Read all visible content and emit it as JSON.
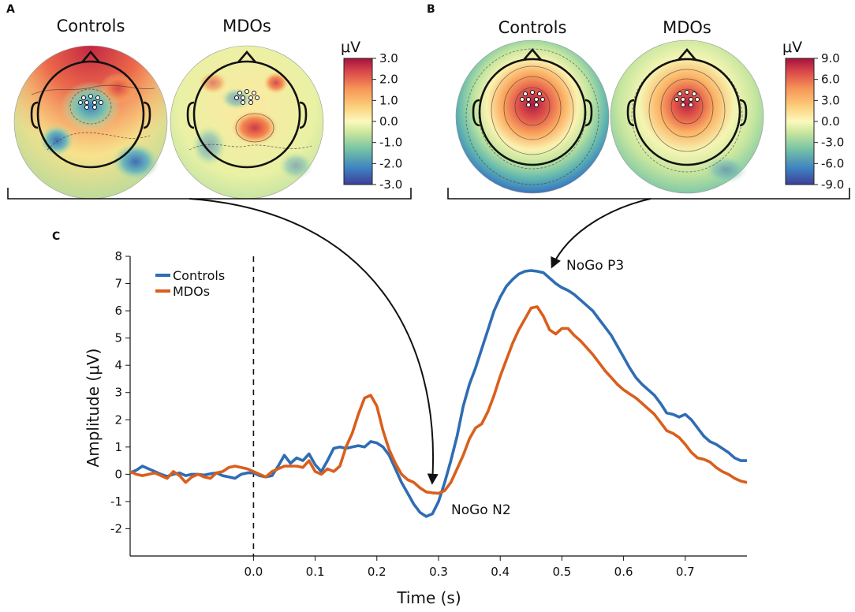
{
  "panels": {
    "a": {
      "letter": "A",
      "maps": [
        {
          "title": "Controls",
          "style": "A1"
        },
        {
          "title": "MDOs",
          "style": "A2"
        }
      ],
      "colorbar": {
        "unit": "μV",
        "ticks": [
          "3.0",
          "2.0",
          "1.0",
          "0.0",
          "-1.0",
          "-2.0",
          "-3.0"
        ],
        "range": [
          -3,
          3
        ]
      }
    },
    "b": {
      "letter": "B",
      "maps": [
        {
          "title": "Controls",
          "style": "B1"
        },
        {
          "title": "MDOs",
          "style": "B2"
        }
      ],
      "colorbar": {
        "unit": "μV",
        "ticks": [
          "9.0",
          "6.0",
          "3.0",
          "0.0",
          "-3.0",
          "-6.0",
          "-9.0"
        ],
        "range": [
          -9,
          9
        ]
      }
    },
    "c": {
      "letter": "C"
    }
  },
  "chart_data": {
    "type": "line",
    "xlabel": "Time (s)",
    "ylabel": "Amplitude (μV)",
    "xlim": [
      -0.2,
      0.8
    ],
    "ylim": [
      -3,
      8
    ],
    "xticks": [
      "0.0",
      "0.1",
      "0.2",
      "0.3",
      "0.4",
      "0.5",
      "0.6",
      "0.7"
    ],
    "xtick_values": [
      0,
      0.1,
      0.2,
      0.3,
      0.4,
      0.5,
      0.6,
      0.7
    ],
    "yticks": [
      "8",
      "7",
      "6",
      "5",
      "4",
      "3",
      "2",
      "1",
      "0",
      "-1",
      "-2"
    ],
    "ytick_values": [
      8,
      7,
      6,
      5,
      4,
      3,
      2,
      1,
      0,
      -1,
      -2
    ],
    "stimulus_onset": 0.0,
    "legend": {
      "position": "top-left"
    },
    "series": [
      {
        "name": "Controls",
        "color": "#2f6db3",
        "points": [
          [
            -0.2,
            0.05
          ],
          [
            -0.19,
            0.15
          ],
          [
            -0.18,
            0.3
          ],
          [
            -0.17,
            0.2
          ],
          [
            -0.16,
            0.1
          ],
          [
            -0.15,
            0.0
          ],
          [
            -0.14,
            -0.08
          ],
          [
            -0.13,
            0.0
          ],
          [
            -0.12,
            0.05
          ],
          [
            -0.11,
            -0.05
          ],
          [
            -0.1,
            0.0
          ],
          [
            -0.09,
            0.0
          ],
          [
            -0.08,
            -0.03
          ],
          [
            -0.07,
            0.02
          ],
          [
            -0.06,
            0.05
          ],
          [
            -0.05,
            -0.05
          ],
          [
            -0.04,
            -0.1
          ],
          [
            -0.03,
            -0.15
          ],
          [
            -0.02,
            0.0
          ],
          [
            -0.01,
            0.05
          ],
          [
            0.0,
            0.05
          ],
          [
            0.01,
            -0.05
          ],
          [
            0.02,
            -0.1
          ],
          [
            0.03,
            -0.05
          ],
          [
            0.04,
            0.3
          ],
          [
            0.05,
            0.7
          ],
          [
            0.06,
            0.4
          ],
          [
            0.07,
            0.6
          ],
          [
            0.08,
            0.5
          ],
          [
            0.09,
            0.75
          ],
          [
            0.1,
            0.35
          ],
          [
            0.11,
            0.1
          ],
          [
            0.12,
            0.5
          ],
          [
            0.13,
            0.95
          ],
          [
            0.14,
            1.0
          ],
          [
            0.15,
            0.95
          ],
          [
            0.16,
            1.0
          ],
          [
            0.17,
            1.05
          ],
          [
            0.18,
            1.0
          ],
          [
            0.19,
            1.2
          ],
          [
            0.2,
            1.15
          ],
          [
            0.21,
            1.0
          ],
          [
            0.22,
            0.7
          ],
          [
            0.23,
            0.2
          ],
          [
            0.24,
            -0.3
          ],
          [
            0.25,
            -0.7
          ],
          [
            0.26,
            -1.1
          ],
          [
            0.27,
            -1.4
          ],
          [
            0.28,
            -1.55
          ],
          [
            0.29,
            -1.45
          ],
          [
            0.3,
            -1.0
          ],
          [
            0.31,
            -0.3
          ],
          [
            0.32,
            0.5
          ],
          [
            0.33,
            1.4
          ],
          [
            0.34,
            2.5
          ],
          [
            0.35,
            3.3
          ],
          [
            0.36,
            3.9
          ],
          [
            0.37,
            4.6
          ],
          [
            0.38,
            5.3
          ],
          [
            0.39,
            6.0
          ],
          [
            0.4,
            6.5
          ],
          [
            0.41,
            6.9
          ],
          [
            0.42,
            7.15
          ],
          [
            0.43,
            7.35
          ],
          [
            0.44,
            7.45
          ],
          [
            0.45,
            7.48
          ],
          [
            0.46,
            7.45
          ],
          [
            0.47,
            7.4
          ],
          [
            0.48,
            7.2
          ],
          [
            0.49,
            7.0
          ],
          [
            0.5,
            6.85
          ],
          [
            0.51,
            6.75
          ],
          [
            0.52,
            6.6
          ],
          [
            0.53,
            6.4
          ],
          [
            0.54,
            6.2
          ],
          [
            0.55,
            6.0
          ],
          [
            0.56,
            5.7
          ],
          [
            0.57,
            5.4
          ],
          [
            0.58,
            5.1
          ],
          [
            0.59,
            4.7
          ],
          [
            0.6,
            4.3
          ],
          [
            0.61,
            3.9
          ],
          [
            0.62,
            3.55
          ],
          [
            0.63,
            3.3
          ],
          [
            0.64,
            3.1
          ],
          [
            0.65,
            2.9
          ],
          [
            0.66,
            2.6
          ],
          [
            0.67,
            2.25
          ],
          [
            0.68,
            2.2
          ],
          [
            0.69,
            2.1
          ],
          [
            0.7,
            2.2
          ],
          [
            0.71,
            2.0
          ],
          [
            0.72,
            1.7
          ],
          [
            0.73,
            1.4
          ],
          [
            0.74,
            1.2
          ],
          [
            0.75,
            1.1
          ],
          [
            0.76,
            0.95
          ],
          [
            0.77,
            0.8
          ],
          [
            0.78,
            0.6
          ],
          [
            0.79,
            0.5
          ],
          [
            0.8,
            0.5
          ]
        ]
      },
      {
        "name": "MDOs",
        "color": "#d95f1d",
        "points": [
          [
            -0.2,
            0.1
          ],
          [
            -0.19,
            0.0
          ],
          [
            -0.18,
            -0.05
          ],
          [
            -0.17,
            0.0
          ],
          [
            -0.16,
            0.05
          ],
          [
            -0.15,
            -0.05
          ],
          [
            -0.14,
            -0.15
          ],
          [
            -0.13,
            0.1
          ],
          [
            -0.12,
            -0.05
          ],
          [
            -0.11,
            -0.3
          ],
          [
            -0.1,
            -0.1
          ],
          [
            -0.09,
            0.0
          ],
          [
            -0.08,
            -0.1
          ],
          [
            -0.07,
            -0.15
          ],
          [
            -0.06,
            0.05
          ],
          [
            -0.05,
            0.1
          ],
          [
            -0.04,
            0.25
          ],
          [
            -0.03,
            0.3
          ],
          [
            -0.02,
            0.25
          ],
          [
            -0.01,
            0.2
          ],
          [
            0.0,
            0.1
          ],
          [
            0.01,
            0.0
          ],
          [
            0.02,
            -0.1
          ],
          [
            0.03,
            0.1
          ],
          [
            0.04,
            0.2
          ],
          [
            0.05,
            0.3
          ],
          [
            0.06,
            0.3
          ],
          [
            0.07,
            0.3
          ],
          [
            0.08,
            0.25
          ],
          [
            0.09,
            0.5
          ],
          [
            0.1,
            0.1
          ],
          [
            0.11,
            0.0
          ],
          [
            0.12,
            0.2
          ],
          [
            0.13,
            0.1
          ],
          [
            0.14,
            0.3
          ],
          [
            0.15,
            1.0
          ],
          [
            0.16,
            1.5
          ],
          [
            0.17,
            2.2
          ],
          [
            0.18,
            2.8
          ],
          [
            0.19,
            2.9
          ],
          [
            0.2,
            2.5
          ],
          [
            0.21,
            1.6
          ],
          [
            0.22,
            0.9
          ],
          [
            0.23,
            0.4
          ],
          [
            0.24,
            0.0
          ],
          [
            0.25,
            -0.2
          ],
          [
            0.26,
            -0.3
          ],
          [
            0.27,
            -0.5
          ],
          [
            0.28,
            -0.65
          ],
          [
            0.29,
            -0.68
          ],
          [
            0.3,
            -0.7
          ],
          [
            0.31,
            -0.6
          ],
          [
            0.32,
            -0.3
          ],
          [
            0.33,
            0.2
          ],
          [
            0.34,
            0.7
          ],
          [
            0.35,
            1.3
          ],
          [
            0.36,
            1.7
          ],
          [
            0.37,
            1.85
          ],
          [
            0.38,
            2.3
          ],
          [
            0.39,
            2.9
          ],
          [
            0.4,
            3.6
          ],
          [
            0.41,
            4.2
          ],
          [
            0.42,
            4.8
          ],
          [
            0.43,
            5.3
          ],
          [
            0.44,
            5.7
          ],
          [
            0.45,
            6.1
          ],
          [
            0.46,
            6.15
          ],
          [
            0.47,
            5.8
          ],
          [
            0.48,
            5.3
          ],
          [
            0.49,
            5.15
          ],
          [
            0.5,
            5.35
          ],
          [
            0.51,
            5.35
          ],
          [
            0.52,
            5.1
          ],
          [
            0.53,
            4.9
          ],
          [
            0.54,
            4.65
          ],
          [
            0.55,
            4.4
          ],
          [
            0.56,
            4.1
          ],
          [
            0.57,
            3.8
          ],
          [
            0.58,
            3.55
          ],
          [
            0.59,
            3.3
          ],
          [
            0.6,
            3.1
          ],
          [
            0.61,
            2.95
          ],
          [
            0.62,
            2.8
          ],
          [
            0.63,
            2.6
          ],
          [
            0.64,
            2.4
          ],
          [
            0.65,
            2.2
          ],
          [
            0.66,
            1.9
          ],
          [
            0.67,
            1.6
          ],
          [
            0.68,
            1.5
          ],
          [
            0.69,
            1.35
          ],
          [
            0.7,
            1.1
          ],
          [
            0.71,
            0.8
          ],
          [
            0.72,
            0.6
          ],
          [
            0.73,
            0.55
          ],
          [
            0.74,
            0.45
          ],
          [
            0.75,
            0.25
          ],
          [
            0.76,
            0.1
          ],
          [
            0.77,
            0.0
          ],
          [
            0.78,
            -0.15
          ],
          [
            0.79,
            -0.25
          ],
          [
            0.8,
            -0.3
          ]
        ]
      }
    ],
    "annotations": [
      {
        "text": "NoGo N2",
        "x": 0.29,
        "y": -1.55
      },
      {
        "text": "NoGo P3",
        "x": 0.46,
        "y": 7.48
      }
    ]
  }
}
